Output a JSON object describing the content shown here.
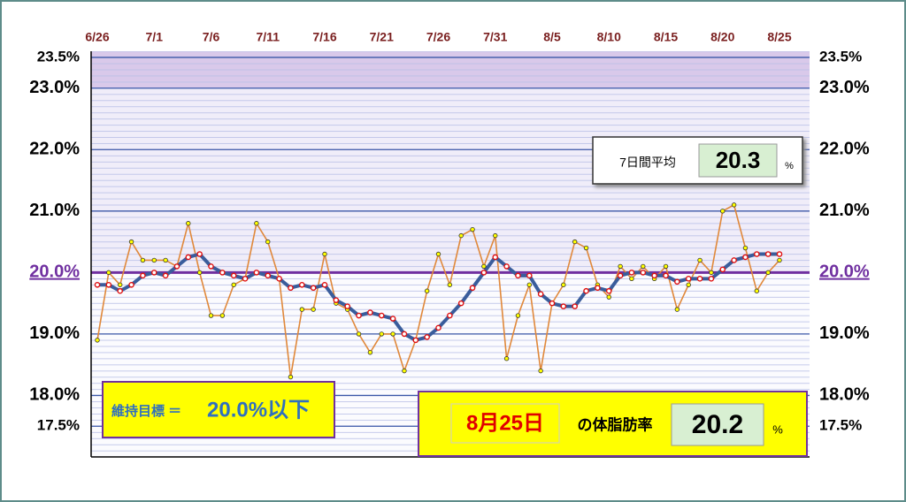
{
  "chart_data": {
    "type": "line",
    "categories": [
      "6/26",
      null,
      null,
      null,
      null,
      "7/1",
      null,
      null,
      null,
      null,
      "7/6",
      null,
      null,
      null,
      null,
      "7/11",
      null,
      null,
      null,
      null,
      "7/16",
      null,
      null,
      null,
      null,
      "7/21",
      null,
      null,
      null,
      null,
      "7/26",
      null,
      null,
      null,
      null,
      "7/31",
      null,
      null,
      null,
      null,
      "8/5",
      null,
      null,
      null,
      null,
      "8/10",
      null,
      null,
      null,
      null,
      "8/15",
      null,
      null,
      null,
      null,
      "8/20",
      null,
      null,
      null,
      null,
      "8/25"
    ],
    "series": [
      {
        "color": "#e0883a",
        "marker_color": "#ffff00",
        "marker_stroke": "#333333",
        "values": [
          18.9,
          20.0,
          19.8,
          20.5,
          20.2,
          20.2,
          20.2,
          20.1,
          20.8,
          20.0,
          19.3,
          19.3,
          19.8,
          19.9,
          20.8,
          20.5,
          19.9,
          18.3,
          19.4,
          19.4,
          20.3,
          19.5,
          19.4,
          19.0,
          18.7,
          19.0,
          19.0,
          18.4,
          18.9,
          19.7,
          20.3,
          19.8,
          20.6,
          20.7,
          20.1,
          20.6,
          18.6,
          19.3,
          19.8,
          18.4,
          19.5,
          19.8,
          20.5,
          20.4,
          19.8,
          19.6,
          20.1,
          19.9,
          20.1,
          19.9,
          20.1,
          19.4,
          19.8,
          20.2,
          20.0,
          21.0,
          21.1,
          20.4,
          19.7,
          20.0,
          20.2
        ]
      },
      {
        "color": "#3a5d9c",
        "marker_color": "#ffffff",
        "marker_stroke": "#e01010",
        "values": [
          19.8,
          19.8,
          19.7,
          19.8,
          19.95,
          20.0,
          19.95,
          20.1,
          20.25,
          20.3,
          20.1,
          20.0,
          19.95,
          19.9,
          20.0,
          19.95,
          19.9,
          19.75,
          19.8,
          19.75,
          19.8,
          19.55,
          19.45,
          19.3,
          19.35,
          19.3,
          19.25,
          19.0,
          18.9,
          18.95,
          19.1,
          19.3,
          19.5,
          19.75,
          20.0,
          20.25,
          20.1,
          19.95,
          19.95,
          19.65,
          19.5,
          19.45,
          19.45,
          19.7,
          19.75,
          19.7,
          19.95,
          20.0,
          20.0,
          19.95,
          19.95,
          19.85,
          19.9,
          19.9,
          19.9,
          20.05,
          20.2,
          20.25,
          20.3,
          20.3,
          20.3
        ]
      }
    ],
    "ylim": [
      17.0,
      23.6
    ],
    "yticks": [
      {
        "value": 23.5,
        "label": "23.5%"
      },
      {
        "value": 23.0,
        "label": "23.0%"
      },
      {
        "value": 22.0,
        "label": "22.0%"
      },
      {
        "value": 21.0,
        "label": "21.0%"
      },
      {
        "value": 20.0,
        "label": "20.0%"
      },
      {
        "value": 19.0,
        "label": "19.0%"
      },
      {
        "value": 18.0,
        "label": "18.0%"
      },
      {
        "value": 17.5,
        "label": "17.5%"
      }
    ],
    "target": 20.0,
    "target_color": "#7030a0",
    "grid": true,
    "annotations": {
      "avg_label": "7日間平均",
      "unit": "%",
      "goal_label": "維持目標 ＝",
      "goal_value": "20.0%以下",
      "date": "8月25日",
      "rate_label": "の体脂肪率"
    }
  }
}
